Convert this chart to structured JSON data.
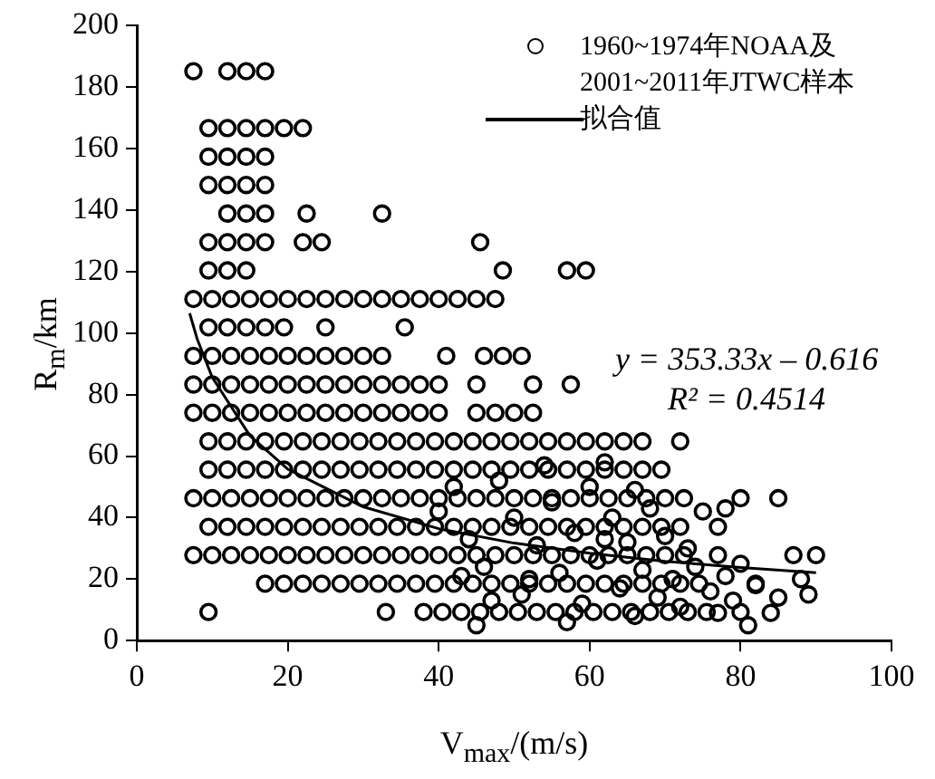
{
  "chart_data": {
    "type": "scatter",
    "xlabel": "V$_{max}$/(m/s)",
    "ylabel": "R$_{m}$/km",
    "xlim": [
      0,
      100
    ],
    "xticks": [
      0,
      20,
      40,
      60,
      80,
      100
    ],
    "ylim": [
      0,
      200
    ],
    "yticks": [
      0,
      20,
      40,
      60,
      80,
      100,
      120,
      140,
      160,
      180,
      200
    ],
    "grid": false,
    "legend": "top right",
    "annotations": [
      "y = 353.33x – 0.616",
      "R² = 0.4514"
    ],
    "series": [
      {
        "name": "1960~1974年NOAA及2001~2011年JTWC样本",
        "color": "#000000",
        "marker": "circle",
        "x": [
          7.5,
          12,
          14.5,
          17,
          9.5,
          12,
          14.5,
          17,
          19.5,
          22,
          9.5,
          12,
          14.5,
          17,
          9.5,
          12,
          14.5,
          17,
          12,
          14.5,
          17,
          22.5,
          32.5,
          9.5,
          12,
          14.5,
          17,
          22,
          24.5,
          45.5,
          9.5,
          12,
          14.5,
          48.5,
          57,
          59.5,
          7.5,
          10,
          12.5,
          15,
          17.5,
          20,
          22.5,
          25,
          27.5,
          30,
          32.5,
          35,
          37.5,
          40,
          42.5,
          45,
          47.5,
          9.5,
          12,
          14.5,
          17,
          19.5,
          25,
          35.5,
          7.5,
          10,
          12.5,
          15,
          17.5,
          20,
          22.5,
          25,
          27.5,
          30,
          32.5,
          41,
          46,
          48.5,
          51,
          7.5,
          10,
          12.5,
          15,
          17.5,
          20,
          22.5,
          25,
          27.5,
          30,
          32.5,
          35,
          37.5,
          40,
          45,
          52.5,
          57.5,
          7.5,
          10,
          12.5,
          15,
          17.5,
          20,
          22.5,
          25,
          27.5,
          30,
          32.5,
          35,
          37.5,
          40,
          45,
          47.5,
          50,
          52.5,
          9.5,
          12,
          14.5,
          17,
          19.5,
          22,
          24.5,
          27,
          29.5,
          32,
          34.5,
          37,
          39.5,
          42,
          44.5,
          47,
          49.5,
          52,
          54.5,
          57,
          59.5,
          62,
          64.5,
          67,
          72,
          9.5,
          12,
          14.5,
          17,
          19.5,
          22,
          24.5,
          27,
          29.5,
          32,
          34.5,
          37,
          39.5,
          42,
          44.5,
          47,
          49.5,
          52,
          54.5,
          57,
          59.5,
          62,
          64.5,
          67,
          69.5,
          7.5,
          10,
          12.5,
          15,
          17.5,
          20,
          22.5,
          25,
          27.5,
          30,
          32.5,
          35,
          37.5,
          40,
          42.5,
          45,
          47.5,
          50,
          52.5,
          55,
          57.5,
          60,
          62.5,
          65,
          67.5,
          70,
          72.5,
          80,
          85,
          9.5,
          12,
          14.5,
          17,
          19.5,
          22,
          24.5,
          27,
          29.5,
          32,
          34.5,
          37,
          39.5,
          42,
          44.5,
          47,
          49.5,
          52,
          54.5,
          57,
          59.5,
          62,
          64.5,
          67,
          69.5,
          72,
          77,
          7.5,
          10,
          12.5,
          15,
          17.5,
          20,
          22.5,
          25,
          27.5,
          30,
          32.5,
          35,
          37.5,
          40,
          42.5,
          45,
          47.5,
          50,
          52.5,
          55,
          57.5,
          60,
          62.5,
          65,
          67.5,
          70,
          72.5,
          77,
          87,
          90,
          17,
          19.5,
          22,
          24.5,
          27,
          29.5,
          32,
          34.5,
          37,
          39.5,
          42,
          44.5,
          47,
          49.5,
          52,
          54.5,
          57,
          59.5,
          62,
          64.5,
          67,
          69.5,
          72,
          74.5,
          82,
          9.5,
          33,
          38,
          40.5,
          43,
          45.5,
          48,
          50.5,
          53,
          55.5,
          58,
          60.5,
          63,
          65.5,
          68,
          70.5,
          73,
          75.5,
          80,
          40,
          42,
          44,
          46,
          48,
          50,
          51,
          53,
          55,
          56,
          58,
          59,
          60,
          61,
          63,
          64,
          65,
          66,
          67,
          68,
          69,
          70,
          71,
          72,
          73,
          74,
          75,
          76,
          77,
          78,
          79,
          80,
          81,
          82,
          84,
          85,
          88,
          54,
          62,
          57,
          45,
          52,
          47,
          62,
          43,
          66,
          78,
          89
        ],
        "values": [
          185.2,
          185.2,
          185.2,
          185.2,
          166.7,
          166.7,
          166.7,
          166.7,
          166.7,
          166.7,
          157.4,
          157.4,
          157.4,
          157.4,
          148.2,
          148.2,
          148.2,
          148.2,
          138.9,
          138.9,
          138.9,
          138.9,
          138.9,
          129.6,
          129.6,
          129.6,
          129.6,
          129.6,
          129.6,
          129.6,
          120.4,
          120.4,
          120.4,
          120.4,
          120.4,
          120.4,
          111.1,
          111.1,
          111.1,
          111.1,
          111.1,
          111.1,
          111.1,
          111.1,
          111.1,
          111.1,
          111.1,
          111.1,
          111.1,
          111.1,
          111.1,
          111.1,
          111.1,
          101.9,
          101.9,
          101.9,
          101.9,
          101.9,
          101.9,
          101.9,
          92.6,
          92.6,
          92.6,
          92.6,
          92.6,
          92.6,
          92.6,
          92.6,
          92.6,
          92.6,
          92.6,
          92.6,
          92.6,
          92.6,
          92.6,
          83.3,
          83.3,
          83.3,
          83.3,
          83.3,
          83.3,
          83.3,
          83.3,
          83.3,
          83.3,
          83.3,
          83.3,
          83.3,
          83.3,
          83.3,
          83.3,
          83.3,
          74.1,
          74.1,
          74.1,
          74.1,
          74.1,
          74.1,
          74.1,
          74.1,
          74.1,
          74.1,
          74.1,
          74.1,
          74.1,
          74.1,
          74.1,
          74.1,
          74.1,
          74.1,
          64.8,
          64.8,
          64.8,
          64.8,
          64.8,
          64.8,
          64.8,
          64.8,
          64.8,
          64.8,
          64.8,
          64.8,
          64.8,
          64.8,
          64.8,
          64.8,
          64.8,
          64.8,
          64.8,
          64.8,
          64.8,
          64.8,
          64.8,
          64.8,
          64.8,
          55.6,
          55.6,
          55.6,
          55.6,
          55.6,
          55.6,
          55.6,
          55.6,
          55.6,
          55.6,
          55.6,
          55.6,
          55.6,
          55.6,
          55.6,
          55.6,
          55.6,
          55.6,
          55.6,
          55.6,
          55.6,
          55.6,
          55.6,
          55.6,
          55.6,
          46.3,
          46.3,
          46.3,
          46.3,
          46.3,
          46.3,
          46.3,
          46.3,
          46.3,
          46.3,
          46.3,
          46.3,
          46.3,
          46.3,
          46.3,
          46.3,
          46.3,
          46.3,
          46.3,
          46.3,
          46.3,
          46.3,
          46.3,
          46.3,
          46.3,
          46.3,
          46.3,
          46.3,
          46.3,
          37,
          37,
          37,
          37,
          37,
          37,
          37,
          37,
          37,
          37,
          37,
          37,
          37,
          37,
          37,
          37,
          37,
          37,
          37,
          37,
          37,
          37,
          37,
          37,
          37,
          37,
          37,
          27.8,
          27.8,
          27.8,
          27.8,
          27.8,
          27.8,
          27.8,
          27.8,
          27.8,
          27.8,
          27.8,
          27.8,
          27.8,
          27.8,
          27.8,
          27.8,
          27.8,
          27.8,
          27.8,
          27.8,
          27.8,
          27.8,
          27.8,
          27.8,
          27.8,
          27.8,
          27.8,
          27.8,
          27.8,
          27.8,
          18.5,
          18.5,
          18.5,
          18.5,
          18.5,
          18.5,
          18.5,
          18.5,
          18.5,
          18.5,
          18.5,
          18.5,
          18.5,
          18.5,
          18.5,
          18.5,
          18.5,
          18.5,
          18.5,
          18.5,
          18.5,
          18.5,
          18.5,
          18.5,
          18.5,
          9.3,
          9.3,
          9.3,
          9.3,
          9.3,
          9.3,
          9.3,
          9.3,
          9.3,
          9.3,
          9.3,
          9.3,
          9.3,
          9.3,
          9.3,
          9.3,
          9.3,
          9.3,
          9.3,
          42,
          50,
          33,
          24,
          52,
          40,
          15,
          31,
          45,
          22,
          35,
          12,
          50,
          26,
          40,
          17,
          32,
          8,
          23,
          43,
          14,
          34,
          20,
          11,
          30,
          24,
          42,
          16,
          9,
          21,
          13,
          25,
          5,
          18,
          9,
          14,
          20,
          57,
          58,
          6,
          5,
          20,
          13,
          33,
          21,
          49,
          43,
          15
        ]
      },
      {
        "name": "拟合值",
        "color": "#000000",
        "type": "line",
        "line_style": "solid",
        "x": [
          7,
          8,
          10,
          15,
          20,
          30,
          40,
          50,
          60,
          70,
          80,
          90
        ],
        "values": [
          106.5,
          98.1,
          85.6,
          66.6,
          55.8,
          43.5,
          36.4,
          31.7,
          28.4,
          25.8,
          23.8,
          22.1
        ]
      }
    ]
  }
}
